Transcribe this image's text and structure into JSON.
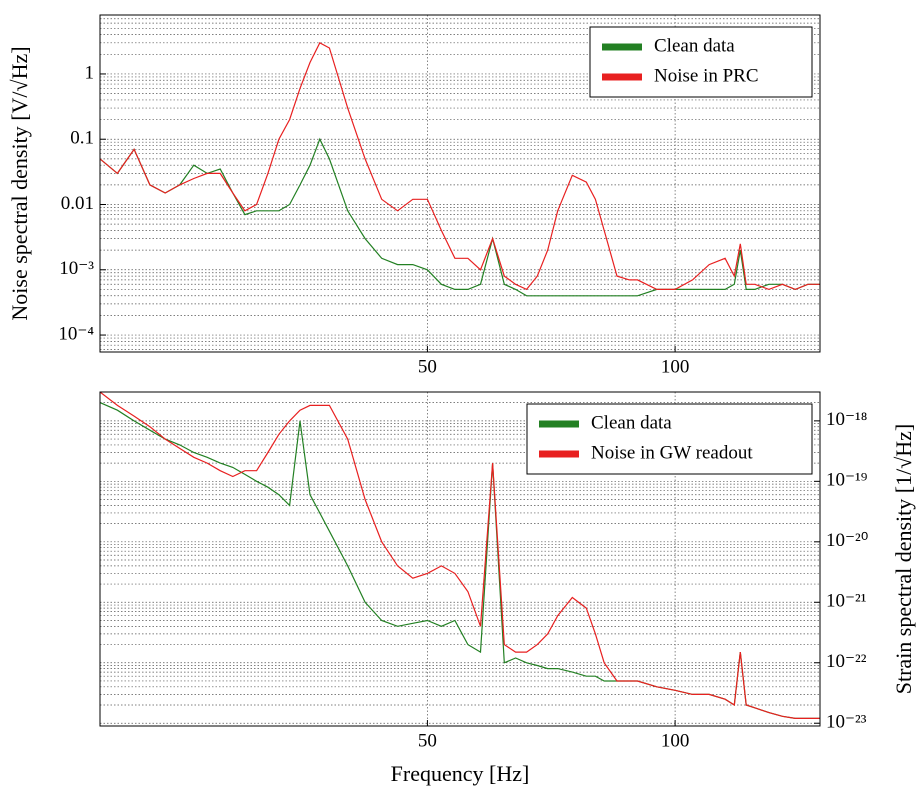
{
  "chart_data": [
    {
      "type": "line",
      "xscale": "log",
      "yscale": "log",
      "y_axis_side": "left",
      "grid": true,
      "legend": "upper right",
      "ylabel": "Noise spectral density [V/√Hz]",
      "xlim": [
        20,
        150
      ],
      "xticks": [
        50,
        100
      ],
      "ylim": [
        5.5e-05,
        8
      ],
      "yticks": [
        {
          "value": 0.0001,
          "label": "10⁻⁴"
        },
        {
          "value": 0.001,
          "label": "10⁻³"
        },
        0.01,
        0.1,
        1
      ],
      "x": [
        20,
        21,
        22,
        23,
        24,
        25,
        26,
        27,
        28,
        29,
        30,
        31,
        32,
        33,
        34,
        35,
        36,
        37,
        38,
        40,
        42,
        44,
        46,
        48,
        50,
        52,
        54,
        56,
        58,
        60,
        62,
        64,
        66,
        68,
        70,
        72,
        75,
        78,
        80,
        82,
        85,
        88,
        90,
        95,
        100,
        105,
        110,
        115,
        118,
        120,
        122,
        125,
        130,
        135,
        140,
        145,
        150
      ],
      "series": [
        {
          "name": "Clean data",
          "color": "#238023",
          "values": [
            0.05,
            0.03,
            0.07,
            0.02,
            0.015,
            0.02,
            0.04,
            0.03,
            0.035,
            0.015,
            0.007,
            0.008,
            0.008,
            0.008,
            0.01,
            0.02,
            0.04,
            0.1,
            0.05,
            0.008,
            0.003,
            0.0015,
            0.0012,
            0.0012,
            0.001,
            0.0006,
            0.0005,
            0.0005,
            0.0006,
            0.003,
            0.0006,
            0.0005,
            0.0004,
            0.0004,
            0.0004,
            0.0004,
            0.0004,
            0.0004,
            0.0004,
            0.0004,
            0.0004,
            0.0004,
            0.0004,
            0.0005,
            0.0005,
            0.0005,
            0.0005,
            0.0005,
            0.0006,
            0.002,
            0.0005,
            0.0005,
            0.0006,
            0.0006,
            0.0005,
            0.0006,
            0.0006
          ]
        },
        {
          "name": "Noise in PRC",
          "color": "#e82020",
          "values": [
            0.05,
            0.03,
            0.07,
            0.02,
            0.015,
            0.02,
            0.025,
            0.03,
            0.03,
            0.015,
            0.008,
            0.01,
            0.03,
            0.1,
            0.2,
            0.6,
            1.5,
            3,
            2.5,
            0.3,
            0.05,
            0.012,
            0.008,
            0.012,
            0.012,
            0.004,
            0.0015,
            0.0015,
            0.001,
            0.003,
            0.0008,
            0.0006,
            0.0005,
            0.0008,
            0.002,
            0.008,
            0.028,
            0.022,
            0.012,
            0.004,
            0.0008,
            0.0007,
            0.0007,
            0.0005,
            0.0005,
            0.0007,
            0.0012,
            0.0015,
            0.0008,
            0.0025,
            0.0006,
            0.0006,
            0.0005,
            0.0006,
            0.0005,
            0.0006,
            0.0006
          ]
        }
      ]
    },
    {
      "type": "line",
      "xscale": "log",
      "yscale": "log",
      "y_axis_side": "right",
      "grid": true,
      "legend": "upper right",
      "ylabel": "Strain spectral density [1/√Hz]",
      "xlabel": "Frequency [Hz]",
      "xlim": [
        20,
        150
      ],
      "xticks": [
        50,
        100
      ],
      "ylim": [
        9e-24,
        3e-18
      ],
      "yticks": [
        {
          "value": 1e-23,
          "label": "10⁻²³"
        },
        {
          "value": 1e-22,
          "label": "10⁻²²"
        },
        {
          "value": 1e-21,
          "label": "10⁻²¹"
        },
        {
          "value": 1e-20,
          "label": "10⁻²⁰"
        },
        {
          "value": 1e-19,
          "label": "10⁻¹⁹"
        },
        {
          "value": 1e-18,
          "label": "10⁻¹⁸"
        }
      ],
      "x": [
        20,
        21,
        22,
        23,
        24,
        25,
        26,
        27,
        28,
        29,
        30,
        31,
        32,
        33,
        34,
        35,
        36,
        37,
        38,
        40,
        42,
        44,
        46,
        48,
        50,
        52,
        54,
        56,
        58,
        60,
        62,
        64,
        66,
        68,
        70,
        72,
        75,
        78,
        80,
        82,
        85,
        88,
        90,
        95,
        100,
        105,
        110,
        115,
        118,
        120,
        122,
        125,
        130,
        135,
        140,
        145,
        150
      ],
      "series": [
        {
          "name": "Clean data",
          "color": "#238023",
          "values": [
            2e-18,
            1.5e-18,
            1e-18,
            7e-19,
            5e-19,
            4e-19,
            3e-19,
            2.5e-19,
            2e-19,
            1.7e-19,
            1.3e-19,
            1e-19,
            8e-20,
            6e-20,
            4e-20,
            1e-18,
            6e-20,
            3e-20,
            1.5e-20,
            4e-21,
            1e-21,
            5e-22,
            4e-22,
            4.5e-22,
            5e-22,
            4e-22,
            5e-22,
            2e-22,
            1.5e-22,
            2e-19,
            1e-22,
            1.2e-22,
            1e-22,
            9e-23,
            8e-23,
            8e-23,
            7e-23,
            6e-23,
            6e-23,
            5e-23,
            5e-23,
            5e-23,
            5e-23,
            4e-23,
            3.5e-23,
            3e-23,
            3e-23,
            2.5e-23,
            2e-23,
            1.5e-22,
            2e-23,
            1.8e-23,
            1.5e-23,
            1.3e-23,
            1.2e-23,
            1.2e-23,
            1.2e-23
          ]
        },
        {
          "name": "Noise in GW readout",
          "color": "#e82020",
          "values": [
            3e-18,
            1.8e-18,
            1.2e-18,
            8e-19,
            5e-19,
            3.5e-19,
            2.5e-19,
            2e-19,
            1.5e-19,
            1.2e-19,
            1.5e-19,
            1.5e-19,
            3e-19,
            6e-19,
            1e-18,
            1.5e-18,
            1.8e-18,
            1.8e-18,
            1.8e-18,
            5e-19,
            5e-20,
            1e-20,
            4e-21,
            2.5e-21,
            3e-21,
            4e-21,
            3e-21,
            1.5e-21,
            4e-22,
            2e-19,
            2e-22,
            1.5e-22,
            1.5e-22,
            2e-22,
            3e-22,
            6e-22,
            1.2e-21,
            8e-22,
            3e-22,
            1e-22,
            5e-23,
            5e-23,
            5e-23,
            4e-23,
            3.5e-23,
            3e-23,
            3e-23,
            2.5e-23,
            2e-23,
            1.5e-22,
            2e-23,
            1.8e-23,
            1.5e-23,
            1.3e-23,
            1.2e-23,
            1.2e-23,
            1.2e-23
          ]
        }
      ]
    }
  ]
}
